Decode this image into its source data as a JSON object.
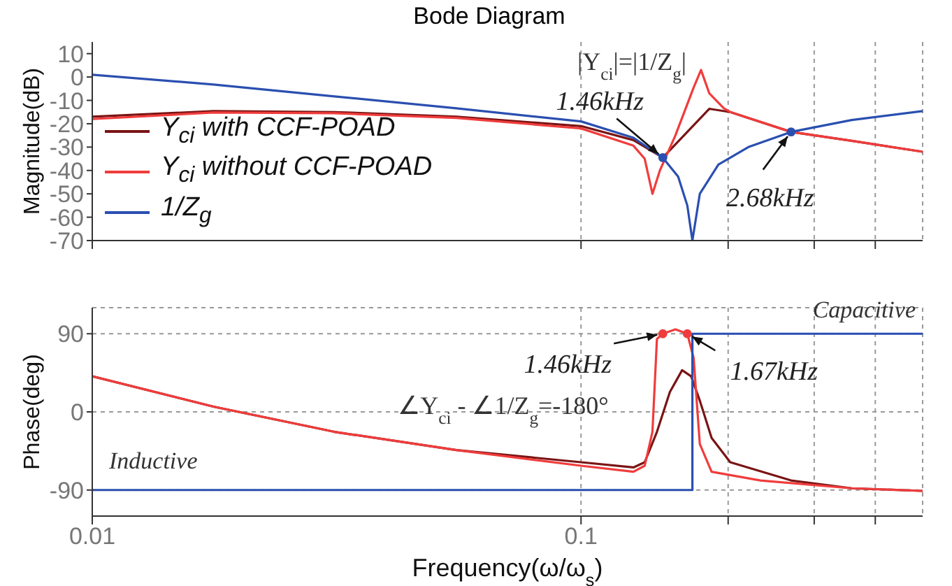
{
  "chart_data": [
    {
      "type": "line",
      "title": "Bode Diagram",
      "ylabel": "Magnitude(dB)",
      "xlim": [
        0.01,
        0.5
      ],
      "xticks": [
        {
          "value": 0.01,
          "label": null
        },
        {
          "value": 0.1,
          "label": null
        },
        {
          "value": 0.2,
          "label": null
        },
        {
          "value": 0.3,
          "label": null
        },
        {
          "value": 0.4,
          "label": null
        }
      ],
      "ylim": [
        -70,
        15
      ],
      "yticks": [
        -70,
        -60,
        -50,
        -40,
        -30,
        -20,
        -10,
        0,
        10
      ],
      "log": "x",
      "grid": "x",
      "tick_labels": "y",
      "legend": "bottom left",
      "marker": "none",
      "line_style": "solid",
      "series": [
        {
          "name": "Y$_{ci}$ with CCF-POAD",
          "color": "#7a1414",
          "x": [
            0.01,
            0.0177,
            0.0313,
            0.0556,
            0.1,
            0.128,
            0.147,
            0.165,
            0.183,
            0.202,
            0.269,
            0.358,
            0.5
          ],
          "values": [
            -17,
            -14.6,
            -15,
            -17,
            -21,
            -27,
            -34.5,
            -23.5,
            -13.6,
            -15,
            -23.5,
            -27.3,
            -32
          ]
        },
        {
          "name": "Y$_{ci}$ without CCF-POAD",
          "color": "#f03c3c",
          "x": [
            0.01,
            0.0177,
            0.0313,
            0.0556,
            0.1,
            0.128,
            0.135,
            0.14,
            0.145,
            0.156,
            0.17,
            0.176,
            0.183,
            0.196,
            0.202,
            0.269,
            0.358,
            0.5
          ],
          "values": [
            -18,
            -15.2,
            -15.5,
            -17.5,
            -22,
            -29.4,
            -35,
            -50,
            -40,
            -25,
            -4.5,
            3,
            -7,
            -13.4,
            -15,
            -23.5,
            -27.3,
            -32
          ]
        },
        {
          "name": "1/Z$_{g}$",
          "color": "#2a4fb0",
          "x": [
            0.01,
            0.0177,
            0.0313,
            0.0556,
            0.1,
            0.128,
            0.147,
            0.158,
            0.165,
            0.169,
            0.175,
            0.191,
            0.22,
            0.269,
            0.358,
            0.5
          ],
          "values": [
            1,
            -3.2,
            -8.3,
            -13.4,
            -19,
            -26,
            -34.5,
            -42.6,
            -55,
            -70,
            -50,
            -37.5,
            -30,
            -23.5,
            -18.4,
            -14.6
          ]
        }
      ],
      "annotations": [
        "|Y$_{ci}$|=|1/Z$_{g}$|",
        {
          "text": "1.46kHz",
          "x": 0.147,
          "y": -34.5
        },
        {
          "text": "2.68kHz",
          "x": 0.269,
          "y": -23.5
        }
      ]
    },
    {
      "type": "line",
      "xlabel": "Frequency(ω/ω$_{s}$)",
      "ylabel": "Phase(deg)",
      "xlim": [
        0.01,
        0.5
      ],
      "xticks": [
        0.01,
        0.1,
        {
          "value": 0.2,
          "label": null
        },
        {
          "value": 0.3,
          "label": null
        },
        {
          "value": 0.4,
          "label": null
        }
      ],
      "ylim": [
        -120,
        120
      ],
      "yticks": [
        -90,
        0,
        90
      ],
      "log": "x",
      "grid": true,
      "marker": "none",
      "line_style": "solid",
      "series": [
        {
          "color": "#7a1414",
          "x": [
            0.01,
            0.0177,
            0.0313,
            0.0556,
            0.1,
            0.128,
            0.135,
            0.143,
            0.152,
            0.161,
            0.168,
            0.175,
            0.185,
            0.202,
            0.269,
            0.358,
            0.5
          ],
          "values": [
            41,
            6,
            -23,
            -44,
            -58,
            -64,
            -58,
            -23,
            23,
            48,
            41,
            13,
            -30,
            -58,
            -79,
            -88,
            -91
          ]
        },
        {
          "color": "#f03c3c",
          "x": [
            0.01,
            0.0177,
            0.0313,
            0.0556,
            0.1,
            0.128,
            0.135,
            0.14,
            0.143,
            0.147,
            0.156,
            0.165,
            0.17,
            0.175,
            0.185,
            0.233,
            0.358,
            0.5
          ],
          "values": [
            41,
            6,
            -23,
            -44,
            -62,
            -69,
            -62,
            -23,
            84,
            90,
            95,
            90,
            62,
            -37,
            -69,
            -79,
            -88,
            -91
          ]
        },
        {
          "color": "#2a4fb0",
          "x": [
            0.01,
            0.169,
            0.169,
            0.5
          ],
          "values": [
            -90,
            -90,
            90,
            90
          ]
        }
      ],
      "annotations": [
        {
          "text": "1.46kHz",
          "x": 0.147,
          "y": 90
        },
        {
          "text": "1.67kHz",
          "x": 0.165,
          "y": 90
        },
        "∠Y$_{ci}$ - ∠1/Z$_{g}$=-180°",
        "Capacitive",
        "Inductive"
      ]
    }
  ]
}
